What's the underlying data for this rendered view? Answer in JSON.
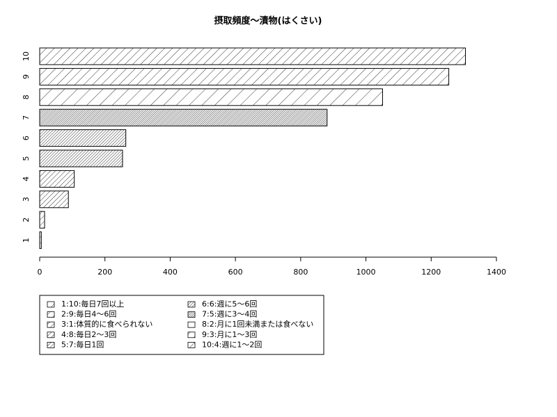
{
  "chart_data": {
    "type": "bar",
    "orientation": "horizontal",
    "title": "摂取頻度〜漬物(はくさい)",
    "xlabel": "",
    "ylabel": "",
    "xlim": [
      0,
      1400
    ],
    "x_ticks": [
      "0",
      "200",
      "400",
      "600",
      "800",
      "1000",
      "1200",
      "1400"
    ],
    "categories": [
      "1",
      "2",
      "3",
      "4",
      "5",
      "6",
      "7",
      "8",
      "9",
      "10"
    ],
    "values": [
      5,
      15,
      88,
      106,
      254,
      264,
      881,
      1051,
      1254,
      1305
    ],
    "bar_patterns": [
      {
        "angle": 45,
        "spacing": 6
      },
      {
        "angle": 45,
        "spacing": 6
      },
      {
        "angle": 45,
        "spacing": 5
      },
      {
        "angle": 45,
        "spacing": 5
      },
      {
        "angle": 45,
        "spacing": 3
      },
      {
        "angle": 45,
        "spacing": 3
      },
      {
        "angle": 45,
        "spacing": 2
      },
      {
        "angle": 45,
        "spacing": 13
      },
      {
        "angle": 45,
        "spacing": 9
      },
      {
        "angle": 45,
        "spacing": 8
      }
    ],
    "grid": false,
    "legend": {
      "placement": "bottom-left",
      "columns": [
        [
          "1:10:毎日7回以上",
          "2:9:毎日4〜6回",
          "3:1:体質的に食べられない",
          "4:8:毎日2〜3回",
          "5:7:毎日1回"
        ],
        [
          "6:6:週に5〜6回",
          "7:5:週に3〜4回",
          "8:2:月に1回未満または食べない",
          "9:3:月に1〜3回",
          "10:4:週に1〜2回"
        ]
      ],
      "swatch_spacing": [
        [
          14,
          8,
          6,
          5,
          4
        ],
        [
          3,
          2,
          14,
          9,
          7
        ]
      ]
    }
  }
}
